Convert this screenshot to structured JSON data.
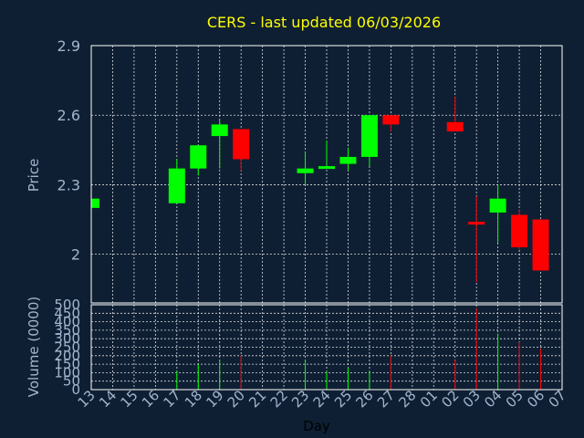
{
  "chart_data": {
    "type": "candlestick",
    "title": "CERS - last updated 06/03/2026",
    "up_color": "#00ff00",
    "down_color": "#ff0000",
    "categories": [
      "13",
      "14",
      "15",
      "16",
      "17",
      "18",
      "19",
      "20",
      "21",
      "22",
      "23",
      "24",
      "25",
      "26",
      "27",
      "28",
      "01",
      "02",
      "03",
      "04",
      "05",
      "06",
      "07"
    ],
    "xlabel": "Day",
    "price": {
      "ylabel": "Price",
      "ylim": [
        1.79,
        2.9
      ],
      "yticks": [
        2,
        2.3,
        2.6,
        2.9
      ],
      "tick_labels": [
        "2",
        "2.3",
        "2.6",
        "2.9"
      ],
      "candles": [
        {
          "x": "13",
          "open": 2.2,
          "high": 2.24,
          "low": 2.2,
          "close": 2.24
        },
        {
          "x": "17",
          "open": 2.22,
          "high": 2.41,
          "low": 2.22,
          "close": 2.37
        },
        {
          "x": "18",
          "open": 2.37,
          "high": 2.47,
          "low": 2.34,
          "close": 2.47
        },
        {
          "x": "19",
          "open": 2.51,
          "high": 2.58,
          "low": 2.37,
          "close": 2.56
        },
        {
          "x": "20",
          "open": 2.54,
          "high": 2.54,
          "low": 2.36,
          "close": 2.41
        },
        {
          "x": "23",
          "open": 2.35,
          "high": 2.44,
          "low": 2.3,
          "close": 2.37
        },
        {
          "x": "24",
          "open": 2.37,
          "high": 2.49,
          "low": 2.37,
          "close": 2.38
        },
        {
          "x": "25",
          "open": 2.39,
          "high": 2.46,
          "low": 2.36,
          "close": 2.42
        },
        {
          "x": "26",
          "open": 2.42,
          "high": 2.6,
          "low": 2.38,
          "close": 2.6
        },
        {
          "x": "27",
          "open": 2.6,
          "high": 2.6,
          "low": 2.53,
          "close": 2.56
        },
        {
          "x": "02",
          "open": 2.57,
          "high": 2.68,
          "low": 2.53,
          "close": 2.53
        },
        {
          "x": "03",
          "open": 2.14,
          "high": 2.25,
          "low": 1.88,
          "close": 2.13
        },
        {
          "x": "04",
          "open": 2.18,
          "high": 2.3,
          "low": 2.05,
          "close": 2.24
        },
        {
          "x": "05",
          "open": 2.17,
          "high": 2.19,
          "low": 2.02,
          "close": 2.03
        },
        {
          "x": "06",
          "open": 2.15,
          "high": 2.15,
          "low": 1.93,
          "close": 1.93
        }
      ]
    },
    "volume": {
      "ylabel": "Volume (0000)",
      "ylim": [
        0,
        500
      ],
      "yticks": [
        0,
        50,
        100,
        150,
        200,
        250,
        300,
        350,
        400,
        450,
        500
      ],
      "tick_labels": [
        "0",
        "50",
        "100",
        "150",
        "200",
        "250",
        "300",
        "350",
        "400",
        "450",
        "500"
      ],
      "bars": [
        {
          "x": "17",
          "value": 110,
          "direction": "up"
        },
        {
          "x": "18",
          "value": 150,
          "direction": "up"
        },
        {
          "x": "19",
          "value": 175,
          "direction": "up"
        },
        {
          "x": "20",
          "value": 200,
          "direction": "down"
        },
        {
          "x": "23",
          "value": 175,
          "direction": "up"
        },
        {
          "x": "24",
          "value": 110,
          "direction": "up"
        },
        {
          "x": "25",
          "value": 130,
          "direction": "up"
        },
        {
          "x": "26",
          "value": 110,
          "direction": "up"
        },
        {
          "x": "27",
          "value": 200,
          "direction": "down"
        },
        {
          "x": "02",
          "value": 175,
          "direction": "down"
        },
        {
          "x": "03",
          "value": 480,
          "direction": "down"
        },
        {
          "x": "04",
          "value": 330,
          "direction": "up"
        },
        {
          "x": "05",
          "value": 280,
          "direction": "down"
        },
        {
          "x": "06",
          "value": 240,
          "direction": "down"
        }
      ]
    }
  }
}
